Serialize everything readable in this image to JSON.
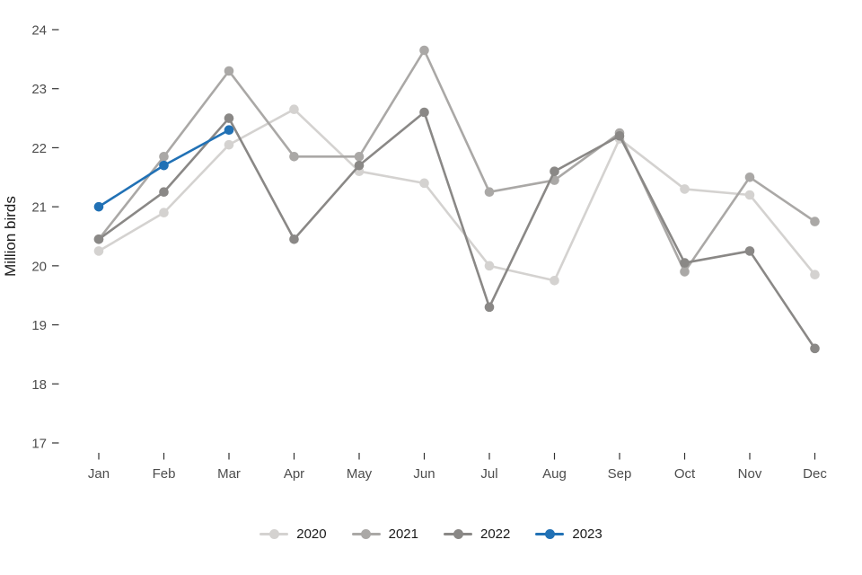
{
  "chart_data": {
    "type": "line",
    "title": "",
    "xlabel": "",
    "ylabel": "Million birds",
    "x": [
      "Jan",
      "Feb",
      "Mar",
      "Apr",
      "May",
      "Jun",
      "Jul",
      "Aug",
      "Sep",
      "Oct",
      "Nov",
      "Dec"
    ],
    "ylim": [
      17,
      24
    ],
    "yticks": [
      17,
      18,
      19,
      20,
      21,
      22,
      23,
      24
    ],
    "grid": false,
    "legend_position": "bottom",
    "point_markers": true,
    "series": [
      {
        "name": "2020",
        "color": "#d4d2d0",
        "values": [
          20.25,
          20.9,
          22.05,
          22.65,
          21.6,
          21.4,
          20.0,
          19.75,
          22.15,
          21.3,
          21.2,
          19.85
        ]
      },
      {
        "name": "2021",
        "color": "#aaa8a6",
        "values": [
          20.45,
          21.85,
          23.3,
          21.85,
          21.85,
          23.65,
          21.25,
          21.45,
          22.25,
          19.9,
          21.5,
          20.75
        ]
      },
      {
        "name": "2022",
        "color": "#8a8886",
        "values": [
          20.45,
          21.25,
          22.5,
          20.45,
          21.7,
          22.6,
          19.3,
          21.6,
          22.2,
          20.05,
          20.25,
          18.6
        ]
      },
      {
        "name": "2023",
        "color": "#2171b5",
        "values": [
          21.0,
          21.7,
          22.3,
          null,
          null,
          null,
          null,
          null,
          null,
          null,
          null,
          null
        ]
      }
    ]
  }
}
